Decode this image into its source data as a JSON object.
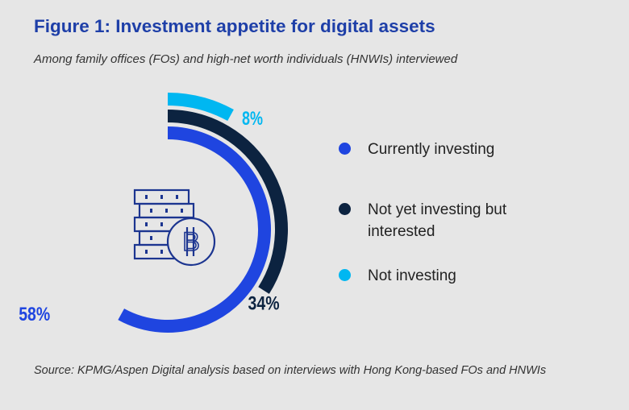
{
  "title": "Figure 1: Investment appetite for digital assets",
  "subtitle": "Among family offices (FOs) and high-net worth individuals (HNWIs) interviewed",
  "source": "Source: KPMG/Aspen Digital analysis based on interviews with Hong Kong-based FOs and HNWIs",
  "chart_data": {
    "type": "radial-bar",
    "title": "Figure 1: Investment appetite for digital assets",
    "unit": "%",
    "series": [
      {
        "name": "Currently investing",
        "value": 58,
        "label": "58%",
        "color": "#1f45e0"
      },
      {
        "name": "Not yet investing but interested",
        "value": 34,
        "label": "34%",
        "color": "#0c2340"
      },
      {
        "name": "Not investing",
        "value": 8,
        "label": "8%",
        "color": "#00b7f1"
      }
    ],
    "max": 100,
    "legend_position": "right",
    "center_icon": "bitcoin-coins-stack-icon"
  }
}
